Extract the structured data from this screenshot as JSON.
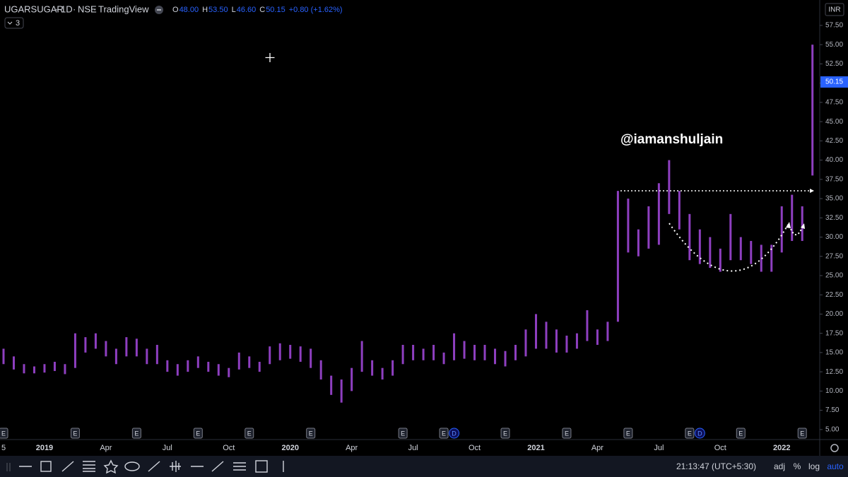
{
  "chart_data": {
    "type": "range-bar",
    "title": "UGARSUGAR",
    "interval": "1D",
    "exchange": "NSE",
    "source": "TradingView",
    "quote": [
      {
        "key": "O",
        "value": "48.00"
      },
      {
        "key": "H",
        "value": "53.50"
      },
      {
        "key": "L",
        "value": "46.60"
      },
      {
        "key": "C",
        "value": "50.15"
      }
    ],
    "change": "+0.80 (+1.62%)",
    "indicator_count": "3",
    "currency": "INR",
    "annotation": "@iamanshuljain",
    "color": "#8e3fc0",
    "categories": [
      "5",
      null,
      null,
      null,
      "2019",
      null,
      null,
      null,
      null,
      null,
      "Apr",
      null,
      null,
      null,
      null,
      null,
      "Jul",
      null,
      null,
      null,
      null,
      null,
      "Oct",
      null,
      null,
      null,
      null,
      null,
      "2020",
      null,
      null,
      null,
      null,
      null,
      "Apr",
      null,
      null,
      null,
      null,
      null,
      "Jul",
      null,
      null,
      null,
      null,
      null,
      "Oct",
      null,
      null,
      null,
      null,
      null,
      "2021",
      null,
      null,
      null,
      null,
      null,
      "Apr",
      null,
      null,
      null,
      null,
      null,
      "Jul",
      null,
      null,
      null,
      null,
      null,
      "Oct",
      null,
      null,
      null,
      null,
      null,
      "2022",
      null,
      null,
      null
    ],
    "high": [
      15.5,
      14.5,
      13.5,
      13.2,
      13.5,
      13.8,
      13.5,
      17.5,
      17,
      17.5,
      16.5,
      15.5,
      17,
      16.8,
      15.5,
      16,
      14,
      13.5,
      14,
      14.5,
      13.8,
      13.5,
      13,
      15,
      14.5,
      13.8,
      15.8,
      16.2,
      16,
      15.8,
      15.5,
      14,
      12,
      11.5,
      13,
      16.5,
      14,
      13,
      14,
      16,
      16,
      15.5,
      16,
      15,
      17.5,
      16.5,
      16,
      16,
      15.5,
      15.2,
      16,
      18,
      20,
      19,
      18,
      17.2,
      17.5,
      20.5,
      18,
      19,
      36,
      35,
      31,
      34,
      37,
      40,
      36,
      33,
      31,
      30,
      28.5,
      33,
      30,
      29.5,
      29,
      29,
      34,
      35.5,
      34,
      55
    ],
    "low": [
      13.5,
      12.8,
      12.3,
      12.3,
      12.4,
      12.6,
      12.2,
      13,
      15,
      15.5,
      14.5,
      13.5,
      14.5,
      14.5,
      13.5,
      13.5,
      12.5,
      12,
      12.5,
      13,
      12.5,
      12,
      11.8,
      12.8,
      13,
      12.5,
      13.5,
      14,
      14.2,
      13.8,
      13,
      11.5,
      9.5,
      8.5,
      10,
      12.5,
      12,
      11.5,
      12,
      13.5,
      14,
      14,
      14,
      13.5,
      14,
      14.2,
      14,
      14,
      13.5,
      13.2,
      14,
      14.5,
      15.5,
      15.5,
      15,
      15,
      15.5,
      16.5,
      16,
      16.5,
      19,
      28,
      27.5,
      28.5,
      29,
      33,
      31,
      27,
      26.5,
      26,
      25.5,
      27,
      27,
      26.5,
      25.5,
      25.5,
      28,
      29.5,
      29.5,
      38
    ],
    "events": [
      "E",
      null,
      null,
      null,
      null,
      null,
      null,
      "E",
      null,
      null,
      null,
      null,
      null,
      "E",
      null,
      null,
      null,
      null,
      null,
      "E",
      null,
      null,
      null,
      null,
      "E",
      null,
      null,
      null,
      null,
      null,
      "E",
      null,
      null,
      null,
      null,
      null,
      null,
      null,
      null,
      "E",
      null,
      null,
      null,
      "E",
      "D",
      null,
      null,
      null,
      null,
      "E",
      null,
      null,
      null,
      null,
      null,
      "E",
      null,
      null,
      null,
      null,
      null,
      "E",
      null,
      null,
      null,
      null,
      null,
      "E",
      "D",
      null,
      null,
      null,
      "E",
      null,
      null,
      null,
      null,
      null,
      "E",
      null
    ],
    "ylim": [
      3.7,
      60.8
    ],
    "yticks": [
      {
        "value": 5,
        "label": "5.00"
      },
      {
        "value": 7.5,
        "label": "7.50"
      },
      {
        "value": 10,
        "label": "10.00"
      },
      {
        "value": 12.5,
        "label": "12.50"
      },
      {
        "value": 15,
        "label": "15.00"
      },
      {
        "value": 17.5,
        "label": "17.50"
      },
      {
        "value": 20,
        "label": "20.00"
      },
      {
        "value": 22.5,
        "label": "22.50"
      },
      {
        "value": 25,
        "label": "25.00"
      },
      {
        "value": 27.5,
        "label": "27.50"
      },
      {
        "value": 30,
        "label": "30.00"
      },
      {
        "value": 32.5,
        "label": "32.50"
      },
      {
        "value": 35,
        "label": "35.00"
      },
      {
        "value": 37.5,
        "label": "37.50"
      },
      {
        "value": 40,
        "label": "40.00"
      },
      {
        "value": 42.5,
        "label": "42.50"
      },
      {
        "value": 45,
        "label": "45.00"
      },
      {
        "value": 47.5,
        "label": "47.50"
      },
      {
        "value": 50,
        "label": "50.00"
      },
      {
        "value": 52.5,
        "label": "52.50"
      },
      {
        "value": 55,
        "label": "55.00"
      },
      {
        "value": 57.5,
        "label": "57.50"
      }
    ],
    "last_price": {
      "value": 50.15,
      "label": "50.15"
    }
  },
  "toolbar": {
    "clock": "21:13:47 (UTC+5:30)",
    "buttons": [
      "adj",
      "%",
      "log",
      "auto"
    ]
  }
}
